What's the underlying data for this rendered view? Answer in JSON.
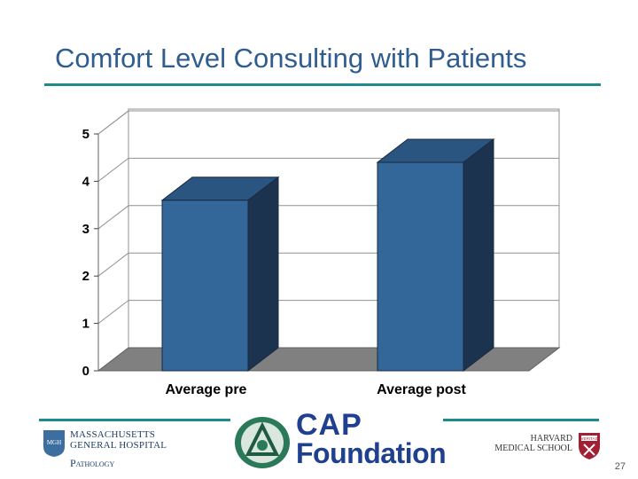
{
  "slide": {
    "title": "Comfort Level Consulting with Patients",
    "page_number": "27"
  },
  "footer": {
    "mgh": {
      "line1": "MASSACHUSETTS",
      "line2": "GENERAL HOSPITAL",
      "line3": "Pathology",
      "seal_text": "MGH"
    },
    "cap": {
      "line1": "CAP",
      "line2": "Foundation"
    },
    "hms": {
      "line1": "HARVARD",
      "line2": "MEDICAL SCHOOL",
      "shield_text": "VERITAS"
    }
  },
  "colors": {
    "accent": "#1e8a8a",
    "title": "#2f5d8f",
    "bar_front": "#336699",
    "bar_side": "#1c3350",
    "bar_top": "#2a5580",
    "floor": "#808080"
  },
  "chart_data": {
    "type": "bar",
    "categories": [
      "Average pre",
      "Average post"
    ],
    "values": [
      3.6,
      4.4
    ],
    "title": "Comfort Level Consulting with Patients",
    "xlabel": "",
    "ylabel": "",
    "ylim": [
      0,
      5
    ],
    "yticks": [
      "0",
      "1",
      "2",
      "3",
      "4",
      "5"
    ],
    "grid": true,
    "legend": "none",
    "style": "3d"
  }
}
